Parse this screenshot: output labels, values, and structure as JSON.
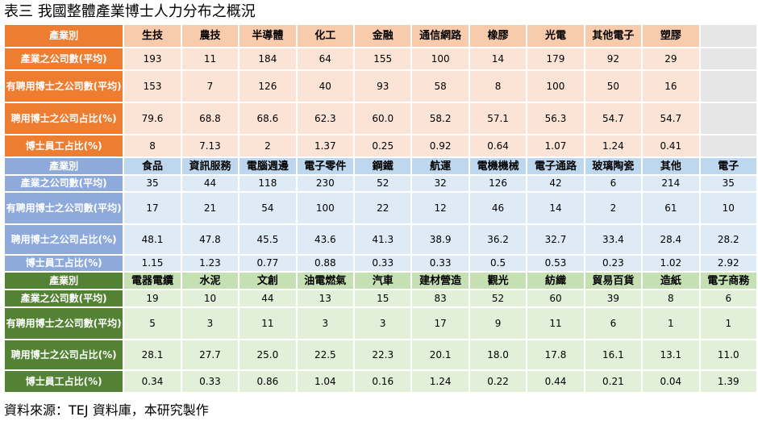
{
  "title": "表三  我國整體產業博士人力分布之概況",
  "source": "資料來源：TEJ 資料庫，本研究製作",
  "row_labels": {
    "header": "產業別",
    "companies": "產業之公司數(平均)",
    "hiring": "有聘用博士之公司數(平均)",
    "ratio": "聘用博士之公司占比(%)",
    "staff": "博士員工占比(%)"
  },
  "sections": [
    {
      "industries": [
        "生技",
        "農技",
        "半導體",
        "化工",
        "金融",
        "通信網路",
        "橡膠",
        "光電",
        "其他電子",
        "塑膠",
        ""
      ],
      "companies": [
        "193",
        "11",
        "184",
        "64",
        "155",
        "100",
        "14",
        "179",
        "92",
        "29",
        ""
      ],
      "hiring": [
        "153",
        "7",
        "126",
        "40",
        "93",
        "58",
        "8",
        "100",
        "50",
        "16",
        ""
      ],
      "ratio": [
        "79.6",
        "68.8",
        "68.6",
        "62.3",
        "60.0",
        "58.2",
        "57.1",
        "56.3",
        "54.7",
        "54.7",
        ""
      ],
      "staff": [
        "8",
        "7.13",
        "2",
        "1.37",
        "0.25",
        "0.92",
        "0.64",
        "1.07",
        "1.24",
        "0.41",
        ""
      ]
    },
    {
      "industries": [
        "食品",
        "資訊服務",
        "電腦週邊",
        "電子零件",
        "鋼鐵",
        "航運",
        "電機機械",
        "電子通路",
        "玻璃陶瓷",
        "其他",
        "電子"
      ],
      "companies": [
        "35",
        "44",
        "118",
        "230",
        "52",
        "32",
        "126",
        "42",
        "6",
        "214",
        "35"
      ],
      "hiring": [
        "17",
        "21",
        "54",
        "100",
        "22",
        "12",
        "46",
        "14",
        "2",
        "61",
        "10"
      ],
      "ratio": [
        "48.1",
        "47.8",
        "45.5",
        "43.6",
        "41.3",
        "38.9",
        "36.2",
        "32.7",
        "33.4",
        "28.4",
        "28.2"
      ],
      "staff": [
        "1.15",
        "1.23",
        "0.77",
        "0.88",
        "0.33",
        "0.33",
        "0.5",
        "0.53",
        "0.23",
        "1.02",
        "2.92"
      ]
    },
    {
      "industries": [
        "電器電纜",
        "水泥",
        "文創",
        "油電燃氣",
        "汽車",
        "建材營造",
        "觀光",
        "紡織",
        "貿易百貨",
        "造紙",
        "電子商務"
      ],
      "companies": [
        "19",
        "10",
        "44",
        "13",
        "15",
        "83",
        "52",
        "60",
        "39",
        "8",
        "6"
      ],
      "hiring": [
        "5",
        "3",
        "11",
        "3",
        "3",
        "17",
        "9",
        "11",
        "6",
        "1",
        "1"
      ],
      "ratio": [
        "28.1",
        "27.7",
        "25.0",
        "22.5",
        "22.3",
        "20.1",
        "18.0",
        "17.8",
        "16.1",
        "13.1",
        "11.0"
      ],
      "staff": [
        "0.34",
        "0.33",
        "0.86",
        "1.04",
        "0.16",
        "1.24",
        "0.22",
        "0.44",
        "0.21",
        "0.04",
        "1.39"
      ]
    }
  ],
  "colors": {
    "section_1": "#ED7D31",
    "section_2": "#8EAADB",
    "section_3": "#548235"
  }
}
